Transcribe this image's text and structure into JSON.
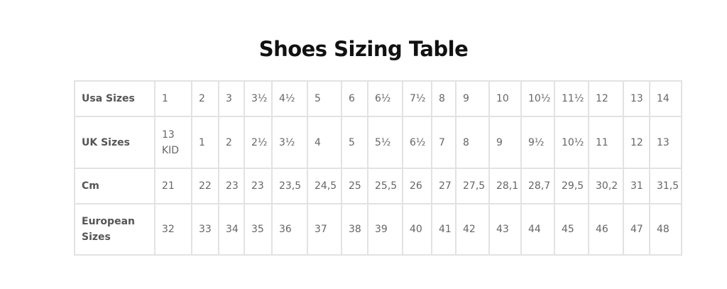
{
  "title": "Shoes Sizing Table",
  "table": {
    "rows": [
      [
        "Usa Sizes",
        "1",
        "2",
        "3",
        "3½",
        "4½",
        "5",
        "6",
        "6½",
        "7½",
        "8",
        "9",
        "10",
        "10½",
        "11½",
        "12",
        "13",
        "14"
      ],
      [
        "UK Sizes",
        "13 KID",
        "1",
        "2",
        "2½",
        "3½",
        "4",
        "5",
        "5½",
        "6½",
        "7",
        "8",
        "9",
        "9½",
        "10½",
        "11",
        "12",
        "13"
      ],
      [
        "Cm",
        "21",
        "22",
        "23",
        "23",
        "23,5",
        "24,5",
        "25",
        "25,5",
        "26",
        "27",
        "27,5",
        "28,1",
        "28,7",
        "29,5",
        "30,2",
        "31",
        "31,5"
      ],
      [
        "European Sizes",
        "32",
        "33",
        "34",
        "35",
        "36",
        "37",
        "38",
        "39",
        "40",
        "41",
        "42",
        "43",
        "44",
        "45",
        "46",
        "47",
        "48"
      ]
    ]
  }
}
